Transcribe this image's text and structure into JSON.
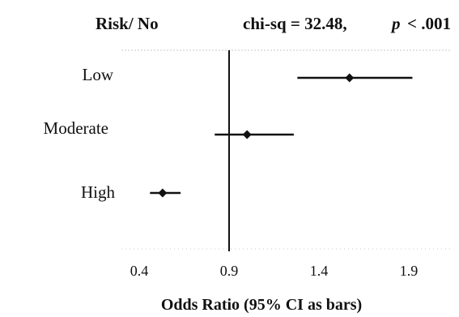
{
  "chart_data": {
    "type": "scatter",
    "header": {
      "left": "Risk/ No",
      "stat": "chi-sq = 32.48,",
      "p_symbol": "p",
      "p_value": "< .001"
    },
    "xlabel": "Odds Ratio (95% CI as bars)",
    "xlim": [
      0.4,
      2.0
    ],
    "xticks": [
      0.4,
      0.9,
      1.4,
      1.9
    ],
    "tick_labels": [
      "0.4",
      "0.9",
      "1.4",
      "1.9"
    ],
    "reference_line": 0.9,
    "categories": [
      "Low",
      "Moderate",
      "High"
    ],
    "points": [
      {
        "label": "Low",
        "or": 1.57,
        "ci_low": 1.28,
        "ci_high": 1.92
      },
      {
        "label": "Moderate",
        "or": 1.0,
        "ci_low": 0.82,
        "ci_high": 1.26
      },
      {
        "label": "High",
        "or": 0.53,
        "ci_low": 0.46,
        "ci_high": 0.63
      }
    ],
    "colors": {
      "ink": "#111111",
      "frame": "#c8c8c8"
    }
  }
}
